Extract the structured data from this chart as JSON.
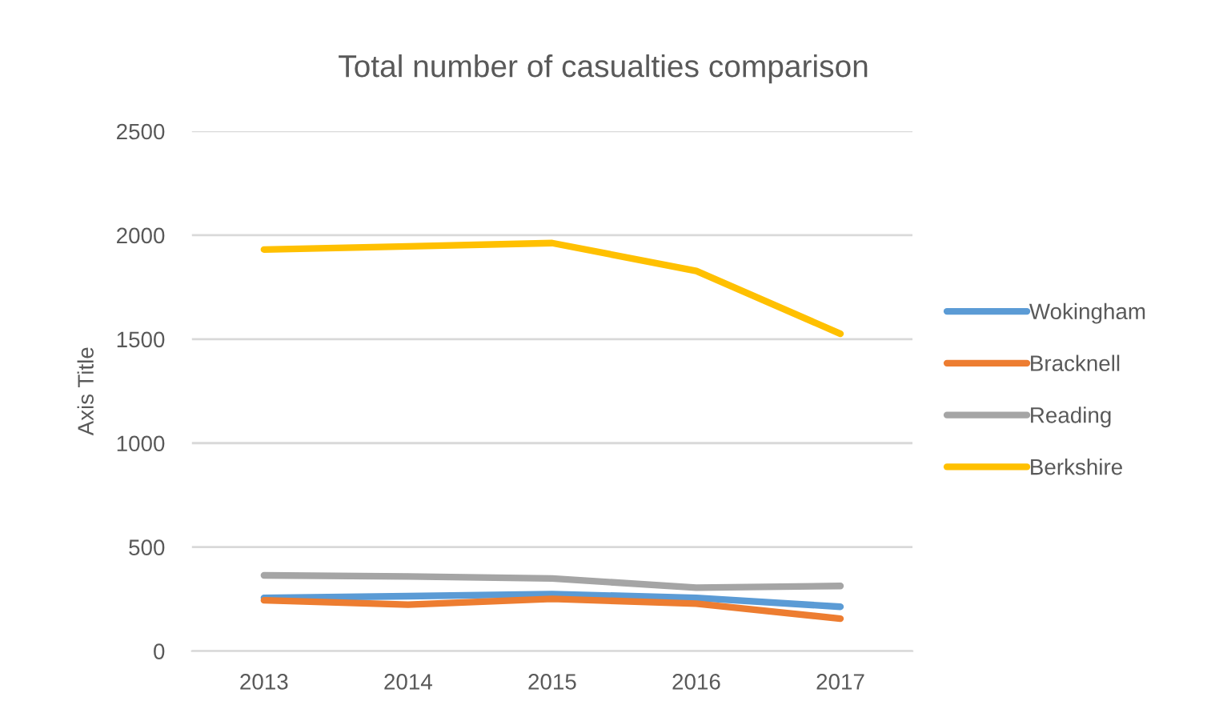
{
  "chart_data": {
    "type": "line",
    "title": "Total number of casualties comparison",
    "ylabel": "Axis Title",
    "categories": [
      "2013",
      "2014",
      "2015",
      "2016",
      "2017"
    ],
    "series": [
      {
        "name": "Wokingham",
        "color": "#5b9bd5",
        "values": [
          256,
          264,
          274,
          256,
          213
        ]
      },
      {
        "name": "Bracknell",
        "color": "#ed7d31",
        "values": [
          244,
          223,
          251,
          228,
          156
        ]
      },
      {
        "name": "Reading",
        "color": "#a5a5a5",
        "values": [
          364,
          359,
          349,
          305,
          313
        ]
      },
      {
        "name": "Berkshire",
        "color": "#ffc000",
        "values": [
          1931,
          1946,
          1962,
          1828,
          1526
        ]
      }
    ],
    "ylim": [
      0,
      2500
    ],
    "yticks": [
      0,
      500,
      1000,
      1500,
      2000,
      2500
    ],
    "grid": "y",
    "legend": "right",
    "marker": "none",
    "line_style": "solid"
  }
}
